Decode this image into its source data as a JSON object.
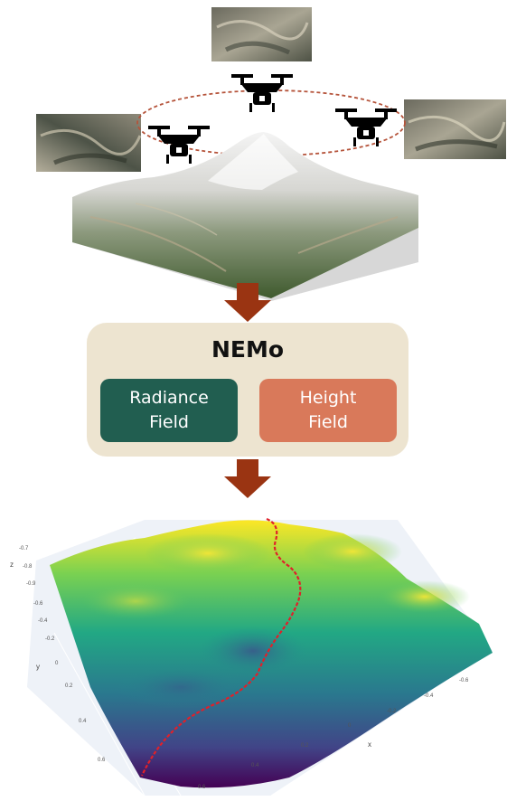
{
  "nemo": {
    "title": "NEMo",
    "radiance_line1": "Radiance",
    "radiance_line2": "Field",
    "height_line1": "Height",
    "height_line2": "Field"
  },
  "colors": {
    "arrow": "#9a3412",
    "box": "#ede4d0",
    "radiance": "#215e50",
    "height": "#d9795a",
    "flight_path": "#b5533a",
    "path_3d": "#e0202a"
  },
  "icons": [
    "drone-icon",
    "satellite-image",
    "mountain-terrain",
    "down-arrow-icon",
    "viridis-surface-plot"
  ],
  "plot": {
    "z_label": "z",
    "y_label": "y",
    "x_label": "x",
    "z_ticks": [
      "-0.7",
      "-0.8",
      "-0.9"
    ],
    "y_ticks": [
      "-0.6",
      "-0.4",
      "-0.2",
      "0",
      "0.2",
      "0.4",
      "0.6"
    ],
    "x_ticks": [
      "0.6",
      "0.4",
      "0.2",
      "0",
      "-0.2",
      "-0.4",
      "-0.6"
    ]
  }
}
